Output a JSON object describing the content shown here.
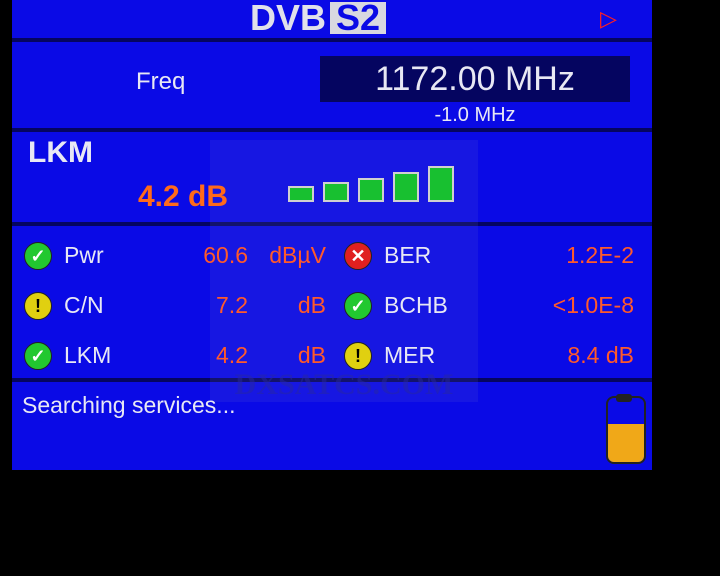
{
  "header": {
    "logo": "DVB",
    "logo_badge": "S2",
    "play_icon": "play-icon"
  },
  "freq": {
    "label": "Freq",
    "value": "1172.00 MHz",
    "offset": "-1.0 MHz"
  },
  "lkm": {
    "title": "LKM",
    "value": "4.2 dB",
    "signal_bars": 5,
    "bar_color": "#18c030"
  },
  "measurements": [
    {
      "status": "ok",
      "label": "Pwr",
      "value": "60.6",
      "unit": "dBµV"
    },
    {
      "status": "warn",
      "label": "C/N",
      "value": "7.2",
      "unit": "dB"
    },
    {
      "status": "ok",
      "label": "LKM",
      "value": "4.2",
      "unit": "dB"
    },
    {
      "status": "error",
      "label": "BER",
      "value": "1.2E-2"
    },
    {
      "status": "ok",
      "label": "BCHB",
      "value": "<1.0E-8"
    },
    {
      "status": "warn",
      "label": "MER",
      "value": "8.4 dB"
    }
  ],
  "status": {
    "text": "Searching services...",
    "battery_level_percent": 60
  },
  "watermark": "DXSATCS.COM"
}
